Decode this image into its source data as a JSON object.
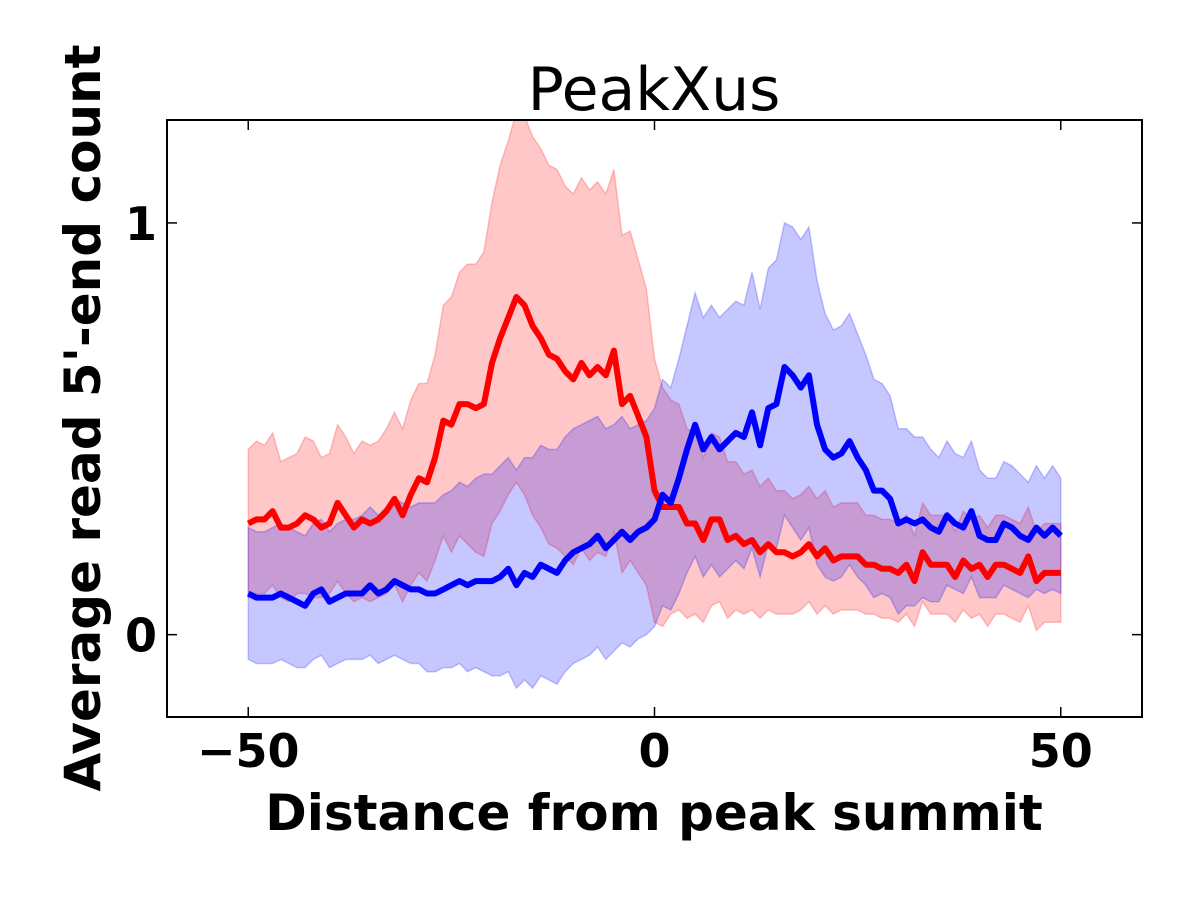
{
  "chart_data": {
    "type": "line",
    "title": "PeakXus",
    "xlabel": "Distance from peak summit",
    "ylabel": "Average read 5'-end count",
    "xlim": [
      -60,
      60
    ],
    "ylim": [
      -0.2,
      1.25
    ],
    "xticks": [
      {
        "value": -50,
        "label": "−50"
      },
      {
        "value": 0,
        "label": "0"
      },
      {
        "value": 50,
        "label": "50"
      }
    ],
    "yticks": [
      {
        "value": 0,
        "label": "0"
      },
      {
        "value": 1,
        "label": "1"
      }
    ],
    "grid": false,
    "legend": "none",
    "x": [
      -50,
      -49,
      -48,
      -47,
      -46,
      -45,
      -44,
      -43,
      -42,
      -41,
      -40,
      -39,
      -38,
      -37,
      -36,
      -35,
      -34,
      -33,
      -32,
      -31,
      -30,
      -29,
      -28,
      -27,
      -26,
      -25,
      -24,
      -23,
      -22,
      -21,
      -20,
      -19,
      -18,
      -17,
      -16,
      -15,
      -14,
      -13,
      -12,
      -11,
      -10,
      -9,
      -8,
      -7,
      -6,
      -5,
      -4,
      -3,
      -2,
      -1,
      0,
      1,
      2,
      3,
      4,
      5,
      6,
      7,
      8,
      9,
      10,
      11,
      12,
      13,
      14,
      15,
      16,
      17,
      18,
      19,
      20,
      21,
      22,
      23,
      24,
      25,
      26,
      27,
      28,
      29,
      30,
      31,
      32,
      33,
      34,
      35,
      36,
      37,
      38,
      39,
      40,
      41,
      42,
      43,
      44,
      45,
      46,
      47,
      48,
      49,
      50
    ],
    "series": [
      {
        "color": "#ff0000",
        "band_color": "#ffc4c4",
        "values": [
          0.27,
          0.28,
          0.28,
          0.3,
          0.26,
          0.26,
          0.27,
          0.29,
          0.28,
          0.26,
          0.27,
          0.32,
          0.29,
          0.26,
          0.28,
          0.27,
          0.28,
          0.3,
          0.33,
          0.29,
          0.34,
          0.38,
          0.37,
          0.43,
          0.52,
          0.51,
          0.56,
          0.56,
          0.55,
          0.56,
          0.66,
          0.72,
          0.77,
          0.82,
          0.8,
          0.75,
          0.72,
          0.68,
          0.67,
          0.64,
          0.62,
          0.66,
          0.63,
          0.65,
          0.63,
          0.69,
          0.56,
          0.58,
          0.53,
          0.48,
          0.35,
          0.31,
          0.31,
          0.31,
          0.27,
          0.27,
          0.23,
          0.28,
          0.28,
          0.23,
          0.24,
          0.22,
          0.23,
          0.2,
          0.22,
          0.2,
          0.2,
          0.19,
          0.2,
          0.22,
          0.19,
          0.21,
          0.18,
          0.19,
          0.19,
          0.19,
          0.17,
          0.17,
          0.16,
          0.16,
          0.15,
          0.17,
          0.13,
          0.2,
          0.17,
          0.17,
          0.17,
          0.14,
          0.18,
          0.16,
          0.17,
          0.14,
          0.17,
          0.17,
          0.16,
          0.15,
          0.19,
          0.13,
          0.15,
          0.15,
          0.15
        ],
        "lower": [
          0.09,
          0.1,
          0.1,
          0.12,
          0.09,
          0.08,
          0.1,
          0.1,
          0.09,
          0.09,
          0.1,
          0.13,
          0.1,
          0.08,
          0.09,
          0.08,
          0.09,
          0.1,
          0.12,
          0.08,
          0.12,
          0.15,
          0.13,
          0.18,
          0.24,
          0.2,
          0.24,
          0.22,
          0.2,
          0.19,
          0.27,
          0.3,
          0.34,
          0.37,
          0.34,
          0.29,
          0.26,
          0.22,
          0.21,
          0.19,
          0.17,
          0.21,
          0.18,
          0.2,
          0.19,
          0.25,
          0.15,
          0.18,
          0.15,
          0.12,
          0.03,
          0.02,
          0.05,
          0.06,
          0.04,
          0.05,
          0.03,
          0.07,
          0.08,
          0.04,
          0.06,
          0.05,
          0.06,
          0.04,
          0.06,
          0.05,
          0.05,
          0.05,
          0.06,
          0.08,
          0.05,
          0.07,
          0.05,
          0.06,
          0.06,
          0.06,
          0.05,
          0.05,
          0.04,
          0.04,
          0.03,
          0.05,
          0.02,
          0.08,
          0.05,
          0.05,
          0.05,
          0.03,
          0.06,
          0.04,
          0.05,
          0.02,
          0.05,
          0.05,
          0.04,
          0.03,
          0.07,
          0.01,
          0.03,
          0.03,
          0.03
        ],
        "upper": [
          0.45,
          0.47,
          0.46,
          0.49,
          0.42,
          0.43,
          0.44,
          0.48,
          0.47,
          0.43,
          0.44,
          0.51,
          0.48,
          0.44,
          0.47,
          0.46,
          0.47,
          0.5,
          0.54,
          0.5,
          0.57,
          0.61,
          0.61,
          0.68,
          0.8,
          0.82,
          0.88,
          0.9,
          0.9,
          0.93,
          1.05,
          1.14,
          1.2,
          1.27,
          1.26,
          1.21,
          1.18,
          1.14,
          1.13,
          1.09,
          1.07,
          1.11,
          1.08,
          1.1,
          1.07,
          1.13,
          0.97,
          0.98,
          0.91,
          0.84,
          0.67,
          0.6,
          0.57,
          0.56,
          0.5,
          0.49,
          0.43,
          0.49,
          0.48,
          0.42,
          0.42,
          0.39,
          0.4,
          0.36,
          0.38,
          0.35,
          0.35,
          0.33,
          0.34,
          0.36,
          0.33,
          0.35,
          0.31,
          0.32,
          0.32,
          0.32,
          0.29,
          0.29,
          0.28,
          0.28,
          0.27,
          0.29,
          0.24,
          0.32,
          0.29,
          0.29,
          0.29,
          0.25,
          0.3,
          0.28,
          0.29,
          0.26,
          0.29,
          0.29,
          0.28,
          0.27,
          0.31,
          0.25,
          0.27,
          0.27,
          0.27
        ]
      },
      {
        "color": "#0000ff",
        "band_color": "#c4c4ff",
        "values": [
          0.1,
          0.09,
          0.09,
          0.09,
          0.1,
          0.09,
          0.08,
          0.07,
          0.1,
          0.11,
          0.08,
          0.09,
          0.1,
          0.1,
          0.1,
          0.12,
          0.1,
          0.11,
          0.13,
          0.12,
          0.11,
          0.11,
          0.1,
          0.1,
          0.11,
          0.12,
          0.13,
          0.12,
          0.13,
          0.13,
          0.13,
          0.14,
          0.16,
          0.12,
          0.15,
          0.14,
          0.17,
          0.16,
          0.15,
          0.18,
          0.2,
          0.21,
          0.22,
          0.24,
          0.21,
          0.23,
          0.25,
          0.23,
          0.25,
          0.26,
          0.28,
          0.34,
          0.32,
          0.38,
          0.45,
          0.51,
          0.45,
          0.48,
          0.45,
          0.47,
          0.49,
          0.48,
          0.54,
          0.46,
          0.55,
          0.56,
          0.65,
          0.63,
          0.6,
          0.63,
          0.51,
          0.45,
          0.43,
          0.44,
          0.47,
          0.43,
          0.4,
          0.35,
          0.35,
          0.33,
          0.27,
          0.28,
          0.27,
          0.28,
          0.26,
          0.25,
          0.29,
          0.27,
          0.26,
          0.3,
          0.24,
          0.23,
          0.23,
          0.27,
          0.26,
          0.24,
          0.23,
          0.26,
          0.24,
          0.26,
          0.24
        ],
        "lower": [
          -0.06,
          -0.07,
          -0.07,
          -0.07,
          -0.06,
          -0.07,
          -0.08,
          -0.08,
          -0.06,
          -0.05,
          -0.08,
          -0.07,
          -0.06,
          -0.06,
          -0.06,
          -0.05,
          -0.07,
          -0.06,
          -0.05,
          -0.06,
          -0.07,
          -0.07,
          -0.09,
          -0.09,
          -0.08,
          -0.08,
          -0.07,
          -0.09,
          -0.08,
          -0.09,
          -0.1,
          -0.1,
          -0.09,
          -0.13,
          -0.11,
          -0.13,
          -0.1,
          -0.11,
          -0.12,
          -0.09,
          -0.07,
          -0.06,
          -0.05,
          -0.03,
          -0.06,
          -0.04,
          -0.02,
          -0.03,
          -0.01,
          0.0,
          0.02,
          0.07,
          0.06,
          0.1,
          0.15,
          0.19,
          0.14,
          0.17,
          0.14,
          0.16,
          0.18,
          0.16,
          0.21,
          0.14,
          0.22,
          0.21,
          0.29,
          0.26,
          0.23,
          0.26,
          0.17,
          0.14,
          0.13,
          0.14,
          0.17,
          0.14,
          0.12,
          0.09,
          0.1,
          0.09,
          0.05,
          0.07,
          0.07,
          0.09,
          0.08,
          0.08,
          0.12,
          0.11,
          0.1,
          0.14,
          0.09,
          0.09,
          0.09,
          0.12,
          0.11,
          0.1,
          0.09,
          0.11,
          0.1,
          0.11,
          0.1
        ],
        "upper": [
          0.26,
          0.25,
          0.25,
          0.26,
          0.27,
          0.26,
          0.25,
          0.24,
          0.27,
          0.28,
          0.25,
          0.27,
          0.28,
          0.28,
          0.29,
          0.31,
          0.29,
          0.31,
          0.33,
          0.32,
          0.31,
          0.32,
          0.32,
          0.32,
          0.34,
          0.35,
          0.37,
          0.36,
          0.38,
          0.39,
          0.39,
          0.41,
          0.43,
          0.4,
          0.43,
          0.43,
          0.46,
          0.45,
          0.45,
          0.48,
          0.5,
          0.51,
          0.52,
          0.53,
          0.5,
          0.51,
          0.53,
          0.5,
          0.51,
          0.52,
          0.55,
          0.62,
          0.6,
          0.67,
          0.75,
          0.83,
          0.77,
          0.8,
          0.77,
          0.79,
          0.81,
          0.8,
          0.88,
          0.79,
          0.89,
          0.91,
          1.0,
          0.99,
          0.96,
          0.99,
          0.86,
          0.78,
          0.74,
          0.75,
          0.78,
          0.73,
          0.68,
          0.62,
          0.61,
          0.58,
          0.5,
          0.5,
          0.48,
          0.48,
          0.45,
          0.43,
          0.47,
          0.44,
          0.43,
          0.47,
          0.4,
          0.38,
          0.38,
          0.42,
          0.41,
          0.39,
          0.37,
          0.41,
          0.38,
          0.41,
          0.38
        ]
      }
    ]
  }
}
